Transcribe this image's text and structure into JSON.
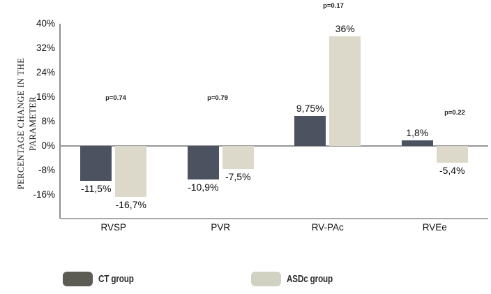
{
  "chart_data": {
    "type": "bar",
    "categories": [
      "RVSP",
      "PVR",
      "RV-PAc",
      "RVEe"
    ],
    "series": [
      {
        "name": "CT group",
        "color": "#4c5260",
        "values": [
          -11.5,
          -10.9,
          9.75,
          1.8
        ],
        "value_labels": [
          "-11,5%",
          "-10,9%",
          "9,75%",
          "1,8%"
        ]
      },
      {
        "name": "ASDc group",
        "color": "#dcd8ca",
        "values": [
          -16.7,
          -7.5,
          36,
          -5.4
        ],
        "value_labels": [
          "-16,7%",
          "-7,5%",
          "36%",
          "-5,4%"
        ]
      }
    ],
    "p_values": [
      "p=0.74",
      "p=0.79",
      "p=0.17",
      "p=0.22"
    ],
    "ylabel_lines": [
      "PERCENTAGE CHANGE IN THE",
      "PARAMETER"
    ],
    "yticks": {
      "values": [
        40,
        32,
        24,
        16,
        8,
        0,
        -8,
        -16
      ],
      "labels": [
        "40%",
        "32%",
        "24%",
        "16%",
        "8%",
        "0%",
        "-8%",
        "-16%"
      ]
    },
    "ylim": [
      -23.5,
      40
    ],
    "grid": false,
    "legend_position": "bottom"
  },
  "legend": {
    "items": [
      {
        "label": "CT group",
        "color": "#5c5c55"
      },
      {
        "label": "ASDc group",
        "color": "#d2d2c2"
      }
    ]
  }
}
